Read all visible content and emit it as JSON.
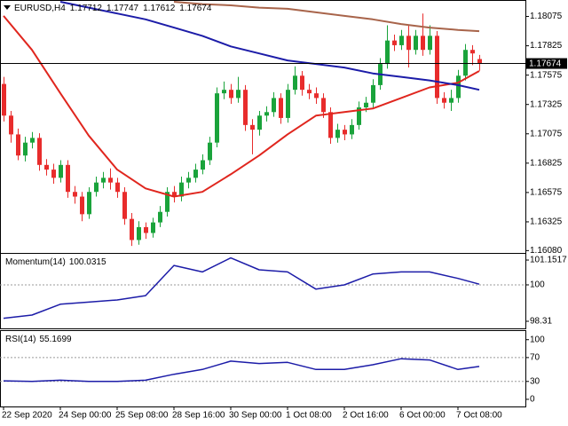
{
  "chart_data": [
    {
      "type": "candlestick",
      "title": "EURUSD,H4",
      "categories": [
        "22 Sep 2020",
        null,
        null,
        null,
        null,
        null,
        null,
        null,
        "24 Sep 00:00",
        null,
        null,
        null,
        null,
        null,
        null,
        null,
        "25 Sep 08:00",
        null,
        null,
        null,
        null,
        null,
        null,
        null,
        "28 Sep 16:00",
        null,
        null,
        null,
        null,
        null,
        null,
        null,
        "30 Sep 00:00",
        null,
        null,
        null,
        null,
        null,
        null,
        null,
        "1 Oct 08:00",
        null,
        null,
        null,
        null,
        null,
        null,
        null,
        "2 Oct 16:00",
        null,
        null,
        null,
        null,
        null,
        null,
        null,
        "6 Oct 00:00",
        null,
        null,
        null,
        null,
        null,
        null,
        null,
        "7 Oct 08:00",
        null,
        null,
        null
      ],
      "open": [
        1.175,
        1.1723,
        1.1707,
        1.1689,
        1.17,
        1.1704,
        1.1681,
        1.1677,
        1.167,
        1.1681,
        1.1658,
        1.1654,
        1.1639,
        1.1658,
        1.1666,
        1.167,
        1.1666,
        1.1658,
        1.1635,
        1.1617,
        1.1628,
        1.1623,
        1.1632,
        1.1641,
        1.1658,
        1.1654,
        1.1666,
        1.167,
        1.1677,
        1.1685,
        1.17,
        1.1742,
        1.1745,
        1.1738,
        1.1745,
        1.1715,
        1.1711,
        1.1723,
        1.1726,
        1.1738,
        1.1721,
        1.1745,
        1.1757,
        1.1745,
        1.1742,
        1.1738,
        1.1726,
        1.1704,
        1.1711,
        1.1707,
        1.1715,
        1.173,
        1.1734,
        1.1749,
        1.1767,
        1.1787,
        1.1783,
        1.1791,
        1.1779,
        1.1791,
        1.1779,
        1.1791,
        1.1738,
        1.1734,
        1.1738,
        1.1757,
        1.1779,
        1.17712
      ],
      "high": [
        1.1756,
        1.1727,
        1.1712,
        1.1705,
        1.1709,
        1.1708,
        1.1686,
        1.1682,
        1.1685,
        1.1685,
        1.1663,
        1.1658,
        1.1662,
        1.1671,
        1.1675,
        1.1678,
        1.167,
        1.1662,
        1.164,
        1.1633,
        1.1632,
        1.1636,
        1.1646,
        1.1662,
        1.1663,
        1.1671,
        1.1675,
        1.1682,
        1.169,
        1.1705,
        1.1747,
        1.1752,
        1.175,
        1.1756,
        1.1749,
        1.172,
        1.1727,
        1.1731,
        1.1743,
        1.1742,
        1.175,
        1.1765,
        1.1761,
        1.175,
        1.1747,
        1.1742,
        1.173,
        1.1716,
        1.1715,
        1.172,
        1.1735,
        1.1739,
        1.1754,
        1.1772,
        1.18,
        1.1792,
        1.1796,
        1.18,
        1.1796,
        1.181,
        1.18,
        1.1795,
        1.1743,
        1.1745,
        1.1762,
        1.1784,
        1.1783,
        1.17747
      ],
      "low": [
        1.1718,
        1.17,
        1.1685,
        1.1684,
        1.1695,
        1.1676,
        1.1672,
        1.1665,
        1.1666,
        1.1653,
        1.1648,
        1.1633,
        1.1635,
        1.1654,
        1.1661,
        1.166,
        1.1653,
        1.163,
        1.1612,
        1.1613,
        1.1618,
        1.1619,
        1.1628,
        1.1637,
        1.1649,
        1.165,
        1.1661,
        1.1666,
        1.1673,
        1.1681,
        1.1696,
        1.1737,
        1.1733,
        1.1734,
        1.171,
        1.169,
        1.1706,
        1.1718,
        1.1722,
        1.1716,
        1.1717,
        1.1741,
        1.174,
        1.1737,
        1.1733,
        1.1721,
        1.1699,
        1.17,
        1.1702,
        1.1703,
        1.1711,
        1.1726,
        1.173,
        1.1745,
        1.1763,
        1.1778,
        1.1779,
        1.1764,
        1.1775,
        1.1774,
        1.1775,
        1.1733,
        1.1729,
        1.1727,
        1.1734,
        1.1753,
        1.1766,
        1.17612
      ],
      "close": [
        1.1723,
        1.1707,
        1.1689,
        1.17,
        1.1704,
        1.1681,
        1.1677,
        1.167,
        1.1681,
        1.1658,
        1.1654,
        1.1639,
        1.1658,
        1.1666,
        1.167,
        1.1666,
        1.1658,
        1.1635,
        1.1617,
        1.1628,
        1.1623,
        1.1632,
        1.1641,
        1.1658,
        1.1654,
        1.1666,
        1.167,
        1.1677,
        1.1685,
        1.17,
        1.1742,
        1.1745,
        1.1738,
        1.1745,
        1.1715,
        1.1711,
        1.1723,
        1.1726,
        1.1738,
        1.1721,
        1.1745,
        1.1757,
        1.1745,
        1.1742,
        1.1738,
        1.1726,
        1.1704,
        1.1711,
        1.1707,
        1.1715,
        1.173,
        1.1734,
        1.1749,
        1.1767,
        1.1787,
        1.1783,
        1.1791,
        1.1779,
        1.1791,
        1.1779,
        1.1791,
        1.1738,
        1.1734,
        1.1738,
        1.1757,
        1.1779,
        1.1776,
        1.17674
      ],
      "up_color": "#1aa33b",
      "down_color": "#e82c2c",
      "series": [
        {
          "color": "#e0261e",
          "x": [
            0,
            4,
            8,
            12,
            16,
            20,
            24,
            28,
            32,
            36,
            40,
            44,
            48,
            52,
            56,
            60,
            64,
            67
          ],
          "values": [
            1.1808,
            1.1779,
            1.1742,
            1.1706,
            1.1677,
            1.1661,
            1.1654,
            1.1658,
            1.1673,
            1.1689,
            1.1707,
            1.1723,
            1.1726,
            1.1729,
            1.1738,
            1.1747,
            1.1751,
            1.1761
          ]
        },
        {
          "color": "#1c1ca8",
          "x": [
            0,
            4,
            8,
            12,
            16,
            20,
            24,
            28,
            32,
            36,
            40,
            44,
            48,
            52,
            56,
            60,
            64,
            67
          ],
          "values": [
            null,
            null,
            1.182,
            1.1815,
            1.181,
            1.1805,
            1.1798,
            1.1791,
            1.1782,
            1.1776,
            1.177,
            1.1767,
            1.1764,
            1.1759,
            1.1756,
            1.1753,
            1.1749,
            1.1745
          ]
        },
        {
          "color": "#a8644a",
          "x": [
            0,
            4,
            8,
            12,
            16,
            20,
            24,
            28,
            32,
            36,
            40,
            44,
            48,
            52,
            56,
            60,
            64,
            67
          ],
          "values": [
            null,
            null,
            null,
            null,
            null,
            null,
            1.182,
            1.1818,
            1.1817,
            1.1815,
            1.1814,
            1.1811,
            1.1808,
            1.1805,
            1.1801,
            1.1798,
            1.1796,
            1.1795
          ]
        }
      ],
      "ylim": [
        1.1606,
        1.182
      ],
      "yticks": [
        1.18075,
        1.17825,
        1.17575,
        1.17325,
        1.17075,
        1.16825,
        1.16575,
        1.16325,
        {
          "value": 1.1608,
          "label": "1.16080"
        }
      ]
    },
    {
      "type": "line",
      "title": "Momentum(14)",
      "series": [
        {
          "color": "#1c1ca8",
          "x": [
            0,
            4,
            8,
            12,
            16,
            20,
            24,
            28,
            32,
            36,
            40,
            44,
            48,
            52,
            56,
            60,
            64,
            67
          ],
          "values": [
            98.45,
            98.6,
            99.1,
            99.2,
            99.3,
            99.5,
            100.9,
            100.6,
            101.25,
            100.7,
            100.6,
            99.8,
            100.0,
            100.5,
            100.6,
            100.6,
            100.3,
            100.0315
          ]
        }
      ],
      "ylim": [
        97.98,
        101.4
      ],
      "yticks": [
        101.1517,
        100,
        98.31
      ],
      "levels": [
        100
      ]
    },
    {
      "type": "line",
      "title": "RSI(14)",
      "series": [
        {
          "color": "#1c1ca8",
          "x": [
            0,
            4,
            8,
            12,
            16,
            20,
            24,
            28,
            32,
            36,
            40,
            44,
            48,
            52,
            56,
            60,
            64,
            67
          ],
          "values": [
            31,
            30,
            32,
            30,
            30,
            32,
            42,
            50,
            64,
            60,
            62,
            50,
            50,
            58,
            68,
            66,
            50,
            55.1699
          ]
        }
      ],
      "ylim": [
        -12,
        113
      ],
      "yticks": [
        100,
        70,
        30,
        0
      ],
      "levels": [
        70,
        30
      ]
    }
  ]
}
